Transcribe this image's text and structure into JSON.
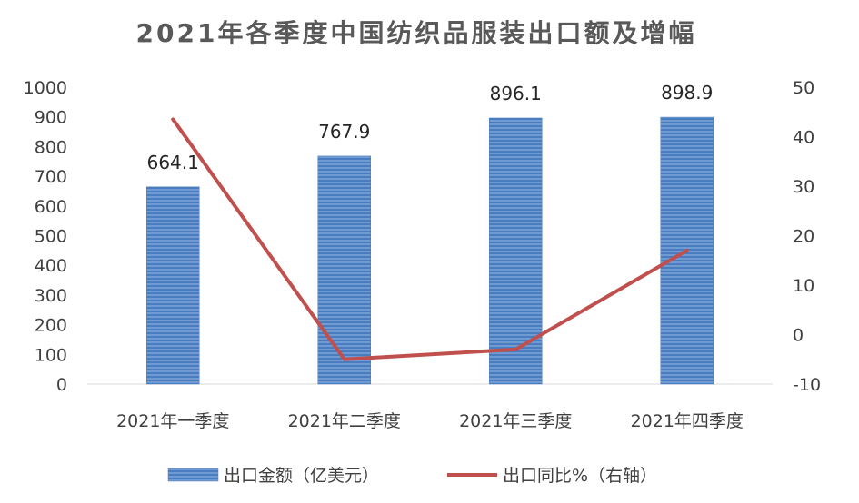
{
  "chart_data": {
    "type": "bar+line",
    "title": "2021年各季度中国纺织品服装出口额及增幅",
    "categories": [
      "2021年一季度",
      "2021年二季度",
      "2021年三季度",
      "2021年四季度"
    ],
    "series": [
      {
        "name": "出口金额（亿美元）",
        "type": "bar",
        "axis": "left",
        "values": [
          664.1,
          767.9,
          896.1,
          898.9
        ],
        "data_labels": [
          "664.1",
          "767.9",
          "896.1",
          "898.9"
        ],
        "color": "#5b8ccc"
      },
      {
        "name": "出口同比%（右轴）",
        "type": "line",
        "axis": "right",
        "values": [
          43.5,
          -5,
          -3,
          17
        ],
        "color": "#c0504d"
      }
    ],
    "y_left": {
      "min": 0,
      "max": 1000,
      "step": 100,
      "ticks": [
        "0",
        "100",
        "200",
        "300",
        "400",
        "500",
        "600",
        "700",
        "800",
        "900",
        "1000"
      ]
    },
    "y_right": {
      "min": -10,
      "max": 50,
      "step": 10,
      "ticks": [
        "-10",
        "0",
        "10",
        "20",
        "30",
        "40",
        "50"
      ]
    },
    "grid": false,
    "legend_position": "bottom"
  }
}
